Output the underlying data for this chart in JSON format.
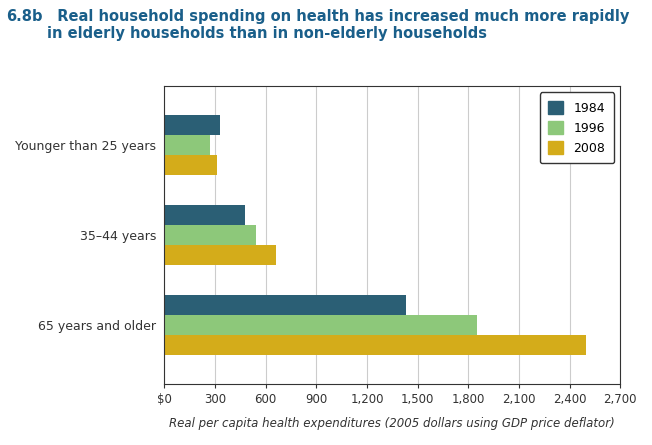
{
  "title_bold": "6.8b",
  "title_rest": "  Real household spending on health has increased much more rapidly\nin elderly households than in non-elderly households",
  "categories": [
    "Younger than 25 years",
    "35–44 years",
    "65 years and older"
  ],
  "years": [
    "1984",
    "1996",
    "2008"
  ],
  "values": {
    "Younger than 25 years": [
      330,
      270,
      310
    ],
    "35–44 years": [
      480,
      540,
      660
    ],
    "65 years and older": [
      1430,
      1850,
      2500
    ]
  },
  "bar_colors": [
    "#2b5f75",
    "#8dc87a",
    "#d4ac1a"
  ],
  "xlim": [
    0,
    2700
  ],
  "xticks": [
    0,
    300,
    600,
    900,
    1200,
    1500,
    1800,
    2100,
    2400,
    2700
  ],
  "xticklabels": [
    "$0",
    "300",
    "600",
    "900",
    "1,200",
    "1,500",
    "1,800",
    "2,100",
    "2,400",
    "2,700"
  ],
  "xlabel": "Real per capita health expenditures (2005 dollars using GDP price deflator)",
  "background_color": "#ffffff",
  "bar_height": 0.22,
  "title_color": "#1a5f8a",
  "legend_years": [
    "1984",
    "1996",
    "2008"
  ],
  "legend_colors": [
    "#2b5f75",
    "#8dc87a",
    "#d4ac1a"
  ],
  "grid_color": "#cccccc",
  "figsize": [
    6.52,
    4.45
  ],
  "dpi": 100
}
